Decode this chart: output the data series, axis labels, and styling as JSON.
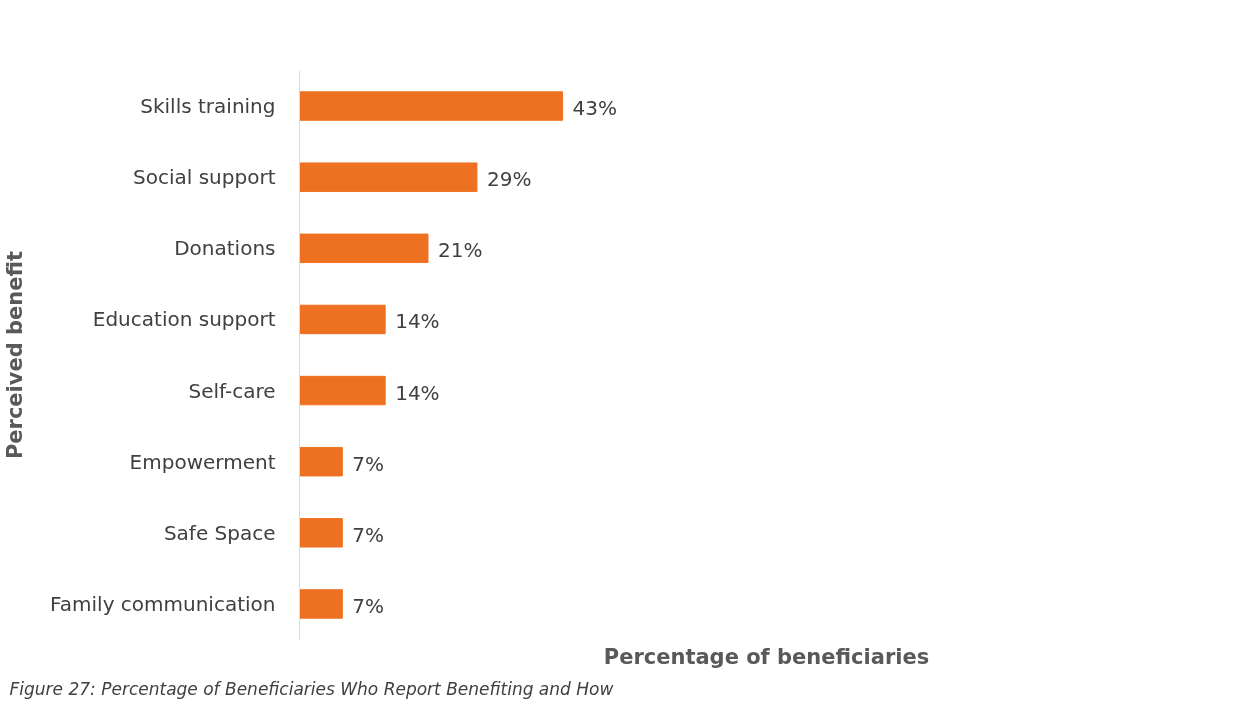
{
  "chart_data": {
    "type": "bar",
    "orientation": "horizontal",
    "categories": [
      "Skills training",
      "Social support",
      "Donations",
      "Education support",
      "Self-care",
      "Empowerment",
      "Safe Space",
      "Family communication"
    ],
    "values": [
      43,
      29,
      21,
      14,
      14,
      7,
      7,
      7
    ],
    "value_labels": [
      "43%",
      "29%",
      "21%",
      "14%",
      "14%",
      "7%",
      "7%",
      "7%"
    ],
    "color": "#ee7122",
    "xlabel": "Percentage of beneficiaries",
    "ylabel": "Perceived benefit",
    "tick_labels": "y",
    "grid": false,
    "annotations": [
      "Figure 27: Percentage of Beneficiaries Who Report Benefiting and How"
    ]
  }
}
